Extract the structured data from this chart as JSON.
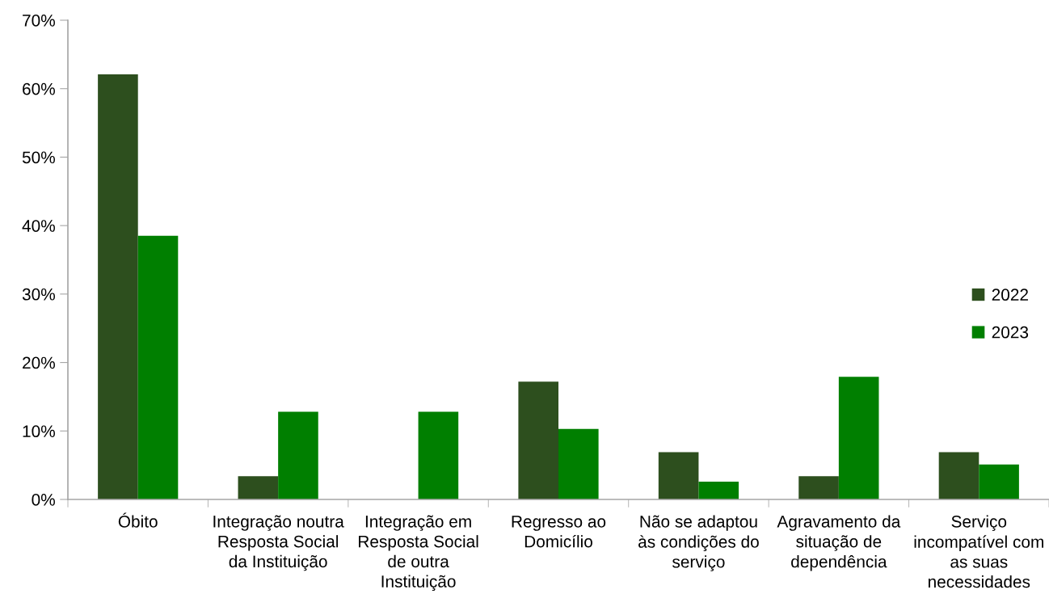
{
  "chart_data": {
    "type": "bar",
    "categories": [
      "Óbito",
      "Integração noutra Resposta Social da Instituição",
      "Integração em Resposta Social de outra Instituição",
      "Regresso ao Domicílio",
      "Não se adaptou às condições do serviço",
      "Agravamento da situação de dependência",
      "Serviço incompatível com as suas necessidades"
    ],
    "series": [
      {
        "name": "2022",
        "color": "#2d4f1e",
        "values": [
          62.1,
          3.4,
          0,
          17.2,
          6.9,
          3.4,
          6.9
        ]
      },
      {
        "name": "2023",
        "color": "#007f00",
        "values": [
          38.5,
          12.8,
          12.8,
          10.3,
          2.6,
          17.9,
          5.1
        ]
      }
    ],
    "ylim": [
      0,
      70
    ],
    "yticks": [
      {
        "value": 0,
        "label": "0%"
      },
      {
        "value": 10,
        "label": "10%"
      },
      {
        "value": 20,
        "label": "20%"
      },
      {
        "value": 30,
        "label": "30%"
      },
      {
        "value": 40,
        "label": "40%"
      },
      {
        "value": 50,
        "label": "50%"
      },
      {
        "value": 60,
        "label": "60%"
      },
      {
        "value": 70,
        "label": "70%"
      }
    ],
    "legend": "right"
  }
}
